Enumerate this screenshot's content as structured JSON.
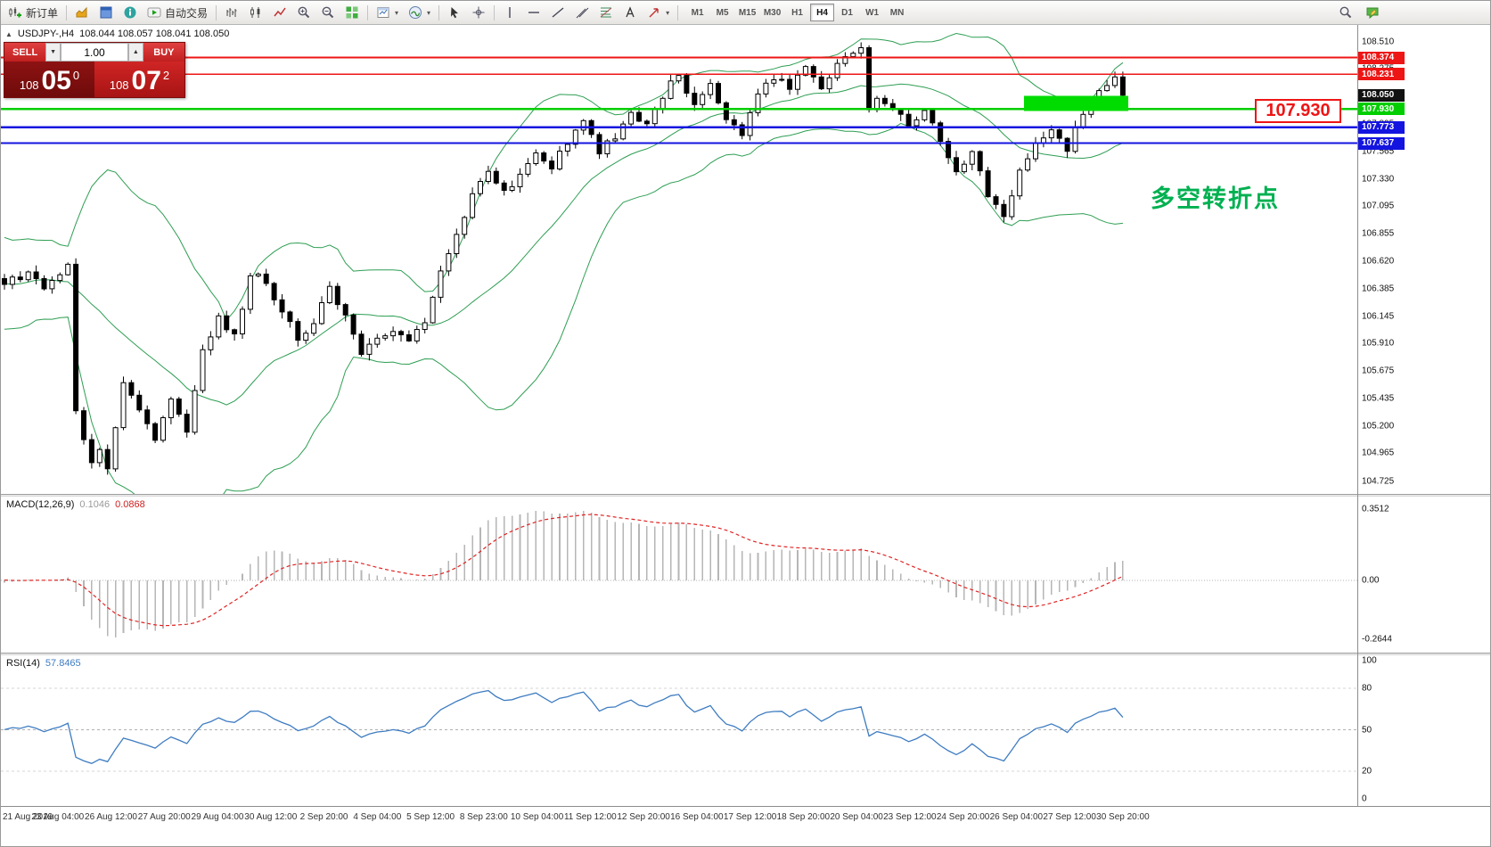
{
  "toolbar": {
    "new_order_label": "新订单",
    "auto_trading_label": "自动交易",
    "timeframes": [
      "M1",
      "M5",
      "M15",
      "M30",
      "H1",
      "H4",
      "D1",
      "W1",
      "MN"
    ],
    "active_timeframe": "H4",
    "glyphs": {
      "dropdown": "▼",
      "spin_up": "▲",
      "collapse": "▲",
      "shapes_dropdown": "▾"
    }
  },
  "symbol_bar": {
    "symbol": "USDJPY-,H4",
    "quotes": "108.044 108.057 108.041 108.050"
  },
  "trade_panel": {
    "sell_label": "SELL",
    "buy_label": "BUY",
    "volume": "1.00",
    "sell_price": {
      "prefix": "108",
      "big": "05",
      "sup": "0"
    },
    "buy_price": {
      "prefix": "108",
      "big": "07",
      "sup": "2"
    }
  },
  "annotations": {
    "price_callout": "107.930",
    "turning_point": "多空转折点"
  },
  "colors": {
    "resistance": "#ee1515",
    "pivot": "#00ce00",
    "support": "#1414e0",
    "current_price": "#111111",
    "highlight": "#00dc00",
    "bollinger": "#2e9e53",
    "macd_bar": "#b6b6b6",
    "macd_signal": "#e02424",
    "rsi_line": "#3e7cc1",
    "annotation_green": "#00b050",
    "annotation_red": "#ee1515"
  },
  "levels": [
    {
      "price": 108.374,
      "label": "108.374",
      "kind": "resistance"
    },
    {
      "price": 108.231,
      "label": "108.231",
      "kind": "resistance"
    },
    {
      "price": 108.05,
      "label": "108.050",
      "kind": "current"
    },
    {
      "price": 107.93,
      "label": "107.930",
      "kind": "pivot"
    },
    {
      "price": 107.773,
      "label": "107.773",
      "kind": "support"
    },
    {
      "price": 107.637,
      "label": "107.637",
      "kind": "support"
    }
  ],
  "highlight_zone": {
    "from_candle": 129,
    "to_candle": 141,
    "price_top": 108.045,
    "price_bottom": 107.915
  },
  "price_axis_ticks": [
    "108.510",
    "108.275",
    "108.040",
    "107.805",
    "107.565",
    "107.330",
    "107.095",
    "106.855",
    "106.620",
    "106.385",
    "106.145",
    "105.910",
    "105.675",
    "105.435",
    "105.200",
    "104.965",
    "104.725"
  ],
  "macd_panel": {
    "name": "MACD(12,26,9)",
    "value_main": "0.1046",
    "value_signal": "0.0868",
    "scale": [
      "0.3512",
      "0.00",
      "-0.2644"
    ]
  },
  "rsi_panel": {
    "name": "RSI(14)",
    "value": "57.8465",
    "scale": [
      "100",
      "80",
      "50",
      "20",
      "0"
    ],
    "guide_levels": [
      80,
      50,
      20
    ]
  },
  "time_axis": [
    "21 Aug 2019",
    "23 Aug 04:00",
    "26 Aug 12:00",
    "27 Aug 20:00",
    "29 Aug 04:00",
    "30 Aug 12:00",
    "2 Sep 20:00",
    "4 Sep 04:00",
    "5 Sep 12:00",
    "8 Sep 23:00",
    "10 Sep 04:00",
    "11 Sep 12:00",
    "12 Sep 20:00",
    "16 Sep 04:00",
    "17 Sep 12:00",
    "18 Sep 20:00",
    "20 Sep 04:00",
    "23 Sep 12:00",
    "24 Sep 20:00",
    "26 Sep 04:00",
    "27 Sep 12:00",
    "30 Sep 20:00"
  ],
  "chart_data": {
    "type": "candlestick",
    "symbol": "USDJPY",
    "timeframe": "H4",
    "price_range_visible": [
      104.615,
      108.655
    ],
    "num_candles": 142,
    "noise_seed": 7,
    "close_anchors": [
      [
        0,
        106.42
      ],
      [
        3,
        106.52
      ],
      [
        5,
        106.38
      ],
      [
        7,
        106.48
      ],
      [
        8,
        106.62
      ],
      [
        9,
        105.32
      ],
      [
        10,
        105.1
      ],
      [
        11,
        104.92
      ],
      [
        12,
        105.02
      ],
      [
        13,
        104.8
      ],
      [
        15,
        105.58
      ],
      [
        17,
        105.35
      ],
      [
        19,
        105.08
      ],
      [
        21,
        105.45
      ],
      [
        23,
        105.18
      ],
      [
        25,
        105.88
      ],
      [
        27,
        106.12
      ],
      [
        29,
        105.96
      ],
      [
        31,
        106.52
      ],
      [
        33,
        106.44
      ],
      [
        35,
        106.18
      ],
      [
        37,
        105.96
      ],
      [
        39,
        106.1
      ],
      [
        41,
        106.42
      ],
      [
        43,
        106.14
      ],
      [
        45,
        105.82
      ],
      [
        47,
        105.94
      ],
      [
        49,
        106.04
      ],
      [
        51,
        105.9
      ],
      [
        53,
        106.12
      ],
      [
        55,
        106.52
      ],
      [
        57,
        106.88
      ],
      [
        59,
        107.18
      ],
      [
        61,
        107.42
      ],
      [
        63,
        107.2
      ],
      [
        65,
        107.34
      ],
      [
        67,
        107.54
      ],
      [
        69,
        107.42
      ],
      [
        71,
        107.66
      ],
      [
        73,
        107.82
      ],
      [
        75,
        107.56
      ],
      [
        77,
        107.7
      ],
      [
        79,
        107.92
      ],
      [
        81,
        107.8
      ],
      [
        83,
        108.06
      ],
      [
        85,
        108.24
      ],
      [
        87,
        107.94
      ],
      [
        89,
        108.14
      ],
      [
        91,
        107.86
      ],
      [
        93,
        107.72
      ],
      [
        95,
        108.04
      ],
      [
        97,
        108.2
      ],
      [
        99,
        108.12
      ],
      [
        101,
        108.28
      ],
      [
        103,
        108.14
      ],
      [
        105,
        108.32
      ],
      [
        107,
        108.42
      ],
      [
        108,
        108.46
      ],
      [
        109,
        107.92
      ],
      [
        110,
        108.06
      ],
      [
        112,
        107.96
      ],
      [
        114,
        107.8
      ],
      [
        116,
        107.94
      ],
      [
        118,
        107.62
      ],
      [
        120,
        107.4
      ],
      [
        122,
        107.56
      ],
      [
        124,
        107.18
      ],
      [
        126,
        107.0
      ],
      [
        128,
        107.42
      ],
      [
        130,
        107.64
      ],
      [
        132,
        107.74
      ],
      [
        134,
        107.6
      ],
      [
        136,
        107.9
      ],
      [
        138,
        108.06
      ],
      [
        140,
        108.18
      ],
      [
        141,
        108.05
      ]
    ],
    "indicators": {
      "bollinger": {
        "period": 20,
        "deviation": 2
      },
      "macd": {
        "fast": 12,
        "slow": 26,
        "signal": 9,
        "current_main": 0.1046,
        "current_signal": 0.0868,
        "scale_max": 0.3512,
        "scale_min": -0.2644
      },
      "rsi": {
        "period": 14,
        "current": 57.8465
      }
    },
    "horizontal_levels": {
      "resistance": [
        108.374,
        108.231
      ],
      "pivot": 107.93,
      "support": [
        107.773,
        107.637
      ],
      "current_bid": 108.05
    }
  }
}
